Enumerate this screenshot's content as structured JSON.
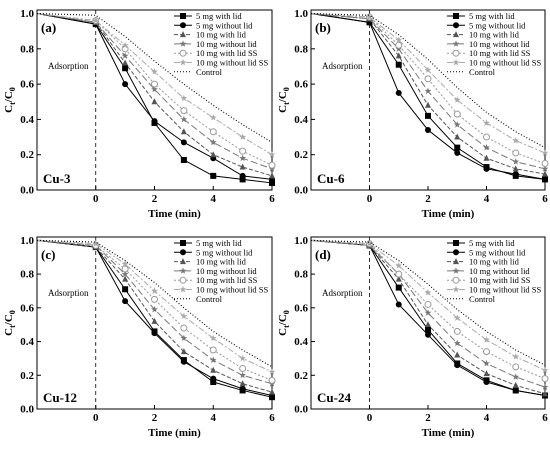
{
  "figure": {
    "legend_entries": [
      "5 mg with lid",
      "5 mg without lid",
      "10 mg with lid",
      "10 mg without lid",
      "10 mg with lid SS",
      "10 mg without lid SS",
      "Control"
    ],
    "series_styles": [
      {
        "color": "#000000",
        "dash": "",
        "marker": "square"
      },
      {
        "color": "#000000",
        "dash": "",
        "marker": "circle"
      },
      {
        "color": "#555555",
        "dash": "4,2",
        "marker": "triangle"
      },
      {
        "color": "#777777",
        "dash": "7,3",
        "marker": "star"
      },
      {
        "color": "#999999",
        "dash": "2,2",
        "marker": "circle-open"
      },
      {
        "color": "#aaaaaa",
        "dash": "6,2,2,2",
        "marker": "star"
      },
      {
        "color": "#000000",
        "dash": "1,2",
        "marker": "none"
      }
    ]
  },
  "chart_data": [
    {
      "type": "line",
      "panel_label": "(a)",
      "sample": "Cu-3",
      "annotation": "Adsorption",
      "xlabel": "Time (min)",
      "ylabel_main": "C",
      "ylabel_sub_top": "t",
      "ylabel_slash": "/C",
      "ylabel_sub_bottom": "0",
      "xlim": [
        -2,
        6
      ],
      "ylim": [
        0,
        1.02
      ],
      "x_ticks": [
        "0",
        "2",
        "4",
        "6"
      ],
      "y_ticks": [
        "0.0",
        "0.2",
        "0.4",
        "0.6",
        "0.8",
        "1.0"
      ],
      "series": [
        {
          "name": "5 mg with lid",
          "x": [
            -2,
            0,
            1,
            2,
            3,
            4,
            5,
            6
          ],
          "y": [
            1.0,
            0.94,
            0.69,
            0.38,
            0.17,
            0.08,
            0.06,
            0.04
          ]
        },
        {
          "name": "5 mg without lid",
          "x": [
            -2,
            0,
            1,
            2,
            3,
            4,
            5,
            6
          ],
          "y": [
            1.0,
            0.94,
            0.6,
            0.39,
            0.27,
            0.18,
            0.08,
            0.06
          ]
        },
        {
          "name": "10 mg with lid",
          "x": [
            -2,
            0,
            1,
            2,
            3,
            4,
            5,
            6
          ],
          "y": [
            1.0,
            0.95,
            0.72,
            0.5,
            0.33,
            0.2,
            0.13,
            0.08
          ]
        },
        {
          "name": "10 mg without lid",
          "x": [
            -2,
            0,
            1,
            2,
            3,
            4,
            5,
            6
          ],
          "y": [
            1.0,
            0.95,
            0.76,
            0.57,
            0.4,
            0.27,
            0.18,
            0.12
          ]
        },
        {
          "name": "10 mg with lid SS",
          "x": [
            -2,
            0,
            1,
            2,
            3,
            4,
            5,
            6
          ],
          "y": [
            1.0,
            0.96,
            0.8,
            0.6,
            0.45,
            0.33,
            0.22,
            0.14
          ]
        },
        {
          "name": "10 mg without lid SS",
          "x": [
            -2,
            0,
            1,
            2,
            3,
            4,
            5,
            6
          ],
          "y": [
            1.0,
            0.96,
            0.82,
            0.67,
            0.52,
            0.41,
            0.3,
            0.2
          ]
        },
        {
          "name": "Control",
          "x": [
            -2,
            0,
            1,
            2,
            3,
            4,
            5,
            6
          ],
          "y": [
            1.0,
            0.99,
            0.87,
            0.73,
            0.6,
            0.48,
            0.37,
            0.27
          ]
        }
      ]
    },
    {
      "type": "line",
      "panel_label": "(b)",
      "sample": "Cu-6",
      "annotation": "Adsorption",
      "xlabel": "Time (min)",
      "ylabel_main": "C",
      "ylabel_sub_top": "t",
      "ylabel_slash": "/C",
      "ylabel_sub_bottom": "0",
      "xlim": [
        -2,
        6
      ],
      "ylim": [
        0,
        1.02
      ],
      "x_ticks": [
        "0",
        "2",
        "4",
        "6"
      ],
      "y_ticks": [
        "0.0",
        "0.2",
        "0.4",
        "0.6",
        "0.8",
        "1.0"
      ],
      "series": [
        {
          "name": "5 mg with lid",
          "x": [
            -2,
            0,
            1,
            2,
            3,
            4,
            5,
            6
          ],
          "y": [
            1.0,
            0.95,
            0.71,
            0.42,
            0.24,
            0.13,
            0.08,
            0.06
          ]
        },
        {
          "name": "5 mg without lid",
          "x": [
            -2,
            0,
            1,
            2,
            3,
            4,
            5,
            6
          ],
          "y": [
            1.0,
            0.95,
            0.55,
            0.34,
            0.21,
            0.12,
            0.09,
            0.06
          ]
        },
        {
          "name": "10 mg with lid",
          "x": [
            -2,
            0,
            1,
            2,
            3,
            4,
            5,
            6
          ],
          "y": [
            1.0,
            0.97,
            0.76,
            0.48,
            0.3,
            0.18,
            0.12,
            0.09
          ]
        },
        {
          "name": "10 mg without lid",
          "x": [
            -2,
            0,
            1,
            2,
            3,
            4,
            5,
            6
          ],
          "y": [
            1.0,
            0.97,
            0.8,
            0.56,
            0.37,
            0.24,
            0.16,
            0.12
          ]
        },
        {
          "name": "10 mg with lid SS",
          "x": [
            -2,
            0,
            1,
            2,
            3,
            4,
            5,
            6
          ],
          "y": [
            1.0,
            0.98,
            0.82,
            0.63,
            0.43,
            0.3,
            0.21,
            0.15
          ]
        },
        {
          "name": "10 mg without lid SS",
          "x": [
            -2,
            0,
            1,
            2,
            3,
            4,
            5,
            6
          ],
          "y": [
            1.0,
            0.98,
            0.85,
            0.68,
            0.51,
            0.38,
            0.28,
            0.21
          ]
        },
        {
          "name": "Control",
          "x": [
            -2,
            0,
            1,
            2,
            3,
            4,
            5,
            6
          ],
          "y": [
            1.0,
            0.99,
            0.88,
            0.74,
            0.58,
            0.44,
            0.33,
            0.24
          ]
        }
      ]
    },
    {
      "type": "line",
      "panel_label": "(c)",
      "sample": "Cu-12",
      "annotation": "Adsorption",
      "xlabel": "Time (min)",
      "ylabel_main": "C",
      "ylabel_sub_top": "t",
      "ylabel_slash": "/C",
      "ylabel_sub_bottom": "0",
      "xlim": [
        -2,
        6
      ],
      "ylim": [
        0,
        1.02
      ],
      "x_ticks": [
        "0",
        "2",
        "4",
        "6"
      ],
      "y_ticks": [
        "0.0",
        "0.2",
        "0.4",
        "0.6",
        "0.8",
        "1.0"
      ],
      "series": [
        {
          "name": "5 mg with lid",
          "x": [
            -2,
            0,
            1,
            2,
            3,
            4,
            5,
            6
          ],
          "y": [
            1.0,
            0.96,
            0.71,
            0.46,
            0.29,
            0.16,
            0.11,
            0.07
          ]
        },
        {
          "name": "5 mg without lid",
          "x": [
            -2,
            0,
            1,
            2,
            3,
            4,
            5,
            6
          ],
          "y": [
            1.0,
            0.96,
            0.64,
            0.45,
            0.28,
            0.18,
            0.12,
            0.08
          ]
        },
        {
          "name": "10 mg with lid",
          "x": [
            -2,
            0,
            1,
            2,
            3,
            4,
            5,
            6
          ],
          "y": [
            1.0,
            0.96,
            0.77,
            0.52,
            0.34,
            0.23,
            0.15,
            0.1
          ]
        },
        {
          "name": "10 mg without lid",
          "x": [
            -2,
            0,
            1,
            2,
            3,
            4,
            5,
            6
          ],
          "y": [
            1.0,
            0.97,
            0.8,
            0.59,
            0.42,
            0.29,
            0.2,
            0.15
          ]
        },
        {
          "name": "10 mg with lid SS",
          "x": [
            -2,
            0,
            1,
            2,
            3,
            4,
            5,
            6
          ],
          "y": [
            1.0,
            0.97,
            0.83,
            0.65,
            0.48,
            0.35,
            0.24,
            0.17
          ]
        },
        {
          "name": "10 mg without lid SS",
          "x": [
            -2,
            0,
            1,
            2,
            3,
            4,
            5,
            6
          ],
          "y": [
            1.0,
            0.98,
            0.86,
            0.7,
            0.55,
            0.42,
            0.3,
            0.22
          ]
        },
        {
          "name": "Control",
          "x": [
            -2,
            0,
            1,
            2,
            3,
            4,
            5,
            6
          ],
          "y": [
            1.0,
            0.99,
            0.88,
            0.75,
            0.6,
            0.46,
            0.35,
            0.25
          ]
        }
      ]
    },
    {
      "type": "line",
      "panel_label": "(d)",
      "sample": "Cu-24",
      "annotation": "Adsorption",
      "xlabel": "Time (min)",
      "ylabel_main": "C",
      "ylabel_sub_top": "t",
      "ylabel_slash": "/C",
      "ylabel_sub_bottom": "0",
      "xlim": [
        -2,
        6
      ],
      "ylim": [
        0,
        1.02
      ],
      "x_ticks": [
        "0",
        "2",
        "4",
        "6"
      ],
      "y_ticks": [
        "0.0",
        "0.2",
        "0.4",
        "0.6",
        "0.8",
        "1.0"
      ],
      "series": [
        {
          "name": "5 mg with lid",
          "x": [
            -2,
            0,
            1,
            2,
            3,
            4,
            5,
            6
          ],
          "y": [
            1.0,
            0.97,
            0.72,
            0.47,
            0.27,
            0.17,
            0.11,
            0.08
          ]
        },
        {
          "name": "5 mg without lid",
          "x": [
            -2,
            0,
            1,
            2,
            3,
            4,
            5,
            6
          ],
          "y": [
            1.0,
            0.97,
            0.62,
            0.44,
            0.26,
            0.16,
            0.11,
            0.08
          ]
        },
        {
          "name": "10 mg with lid",
          "x": [
            -2,
            0,
            1,
            2,
            3,
            4,
            5,
            6
          ],
          "y": [
            1.0,
            0.97,
            0.77,
            0.5,
            0.32,
            0.21,
            0.14,
            0.09
          ]
        },
        {
          "name": "10 mg without lid",
          "x": [
            -2,
            0,
            1,
            2,
            3,
            4,
            5,
            6
          ],
          "y": [
            1.0,
            0.97,
            0.8,
            0.57,
            0.39,
            0.27,
            0.19,
            0.13
          ]
        },
        {
          "name": "10 mg with lid SS",
          "x": [
            -2,
            0,
            1,
            2,
            3,
            4,
            5,
            6
          ],
          "y": [
            1.0,
            0.98,
            0.8,
            0.62,
            0.46,
            0.34,
            0.25,
            0.18
          ]
        },
        {
          "name": "10 mg without lid SS",
          "x": [
            -2,
            0,
            1,
            2,
            3,
            4,
            5,
            6
          ],
          "y": [
            1.0,
            0.98,
            0.85,
            0.69,
            0.54,
            0.41,
            0.31,
            0.23
          ]
        },
        {
          "name": "Control",
          "x": [
            -2,
            0,
            1,
            2,
            3,
            4,
            5,
            6
          ],
          "y": [
            1.0,
            0.99,
            0.88,
            0.74,
            0.59,
            0.46,
            0.35,
            0.26
          ]
        }
      ]
    }
  ]
}
